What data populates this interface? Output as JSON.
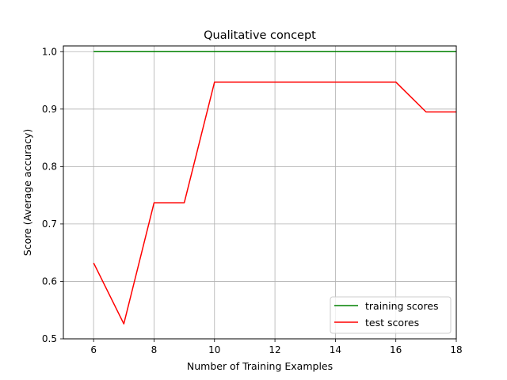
{
  "chart_data": {
    "type": "line",
    "title": "Qualitative concept",
    "xlabel": "Number of Training Examples",
    "ylabel": "Score (Average accuracy)",
    "xlim": [
      5,
      18
    ],
    "ylim": [
      0.5,
      1.01
    ],
    "xticks": [
      6,
      8,
      10,
      12,
      14,
      16,
      18
    ],
    "yticks": [
      0.5,
      0.6,
      0.7,
      0.8,
      0.9,
      1.0
    ],
    "xtick_labels": [
      "6",
      "8",
      "10",
      "12",
      "14",
      "16",
      "18"
    ],
    "ytick_labels": [
      "0.5",
      "0.6",
      "0.7",
      "0.8",
      "0.9",
      "1.0"
    ],
    "grid": true,
    "legend_position": "bottom-right",
    "x": [
      6,
      7,
      8,
      9,
      10,
      11,
      12,
      13,
      14,
      15,
      16,
      17,
      18
    ],
    "series": [
      {
        "name": "training scores",
        "color": "#008000",
        "values": [
          1.0,
          1.0,
          1.0,
          1.0,
          1.0,
          1.0,
          1.0,
          1.0,
          1.0,
          1.0,
          1.0,
          1.0,
          1.0
        ]
      },
      {
        "name": "test scores",
        "color": "#ff0000",
        "values": [
          0.632,
          0.526,
          0.737,
          0.737,
          0.947,
          0.947,
          0.947,
          0.947,
          0.947,
          0.947,
          0.947,
          0.895,
          0.895
        ]
      }
    ]
  }
}
